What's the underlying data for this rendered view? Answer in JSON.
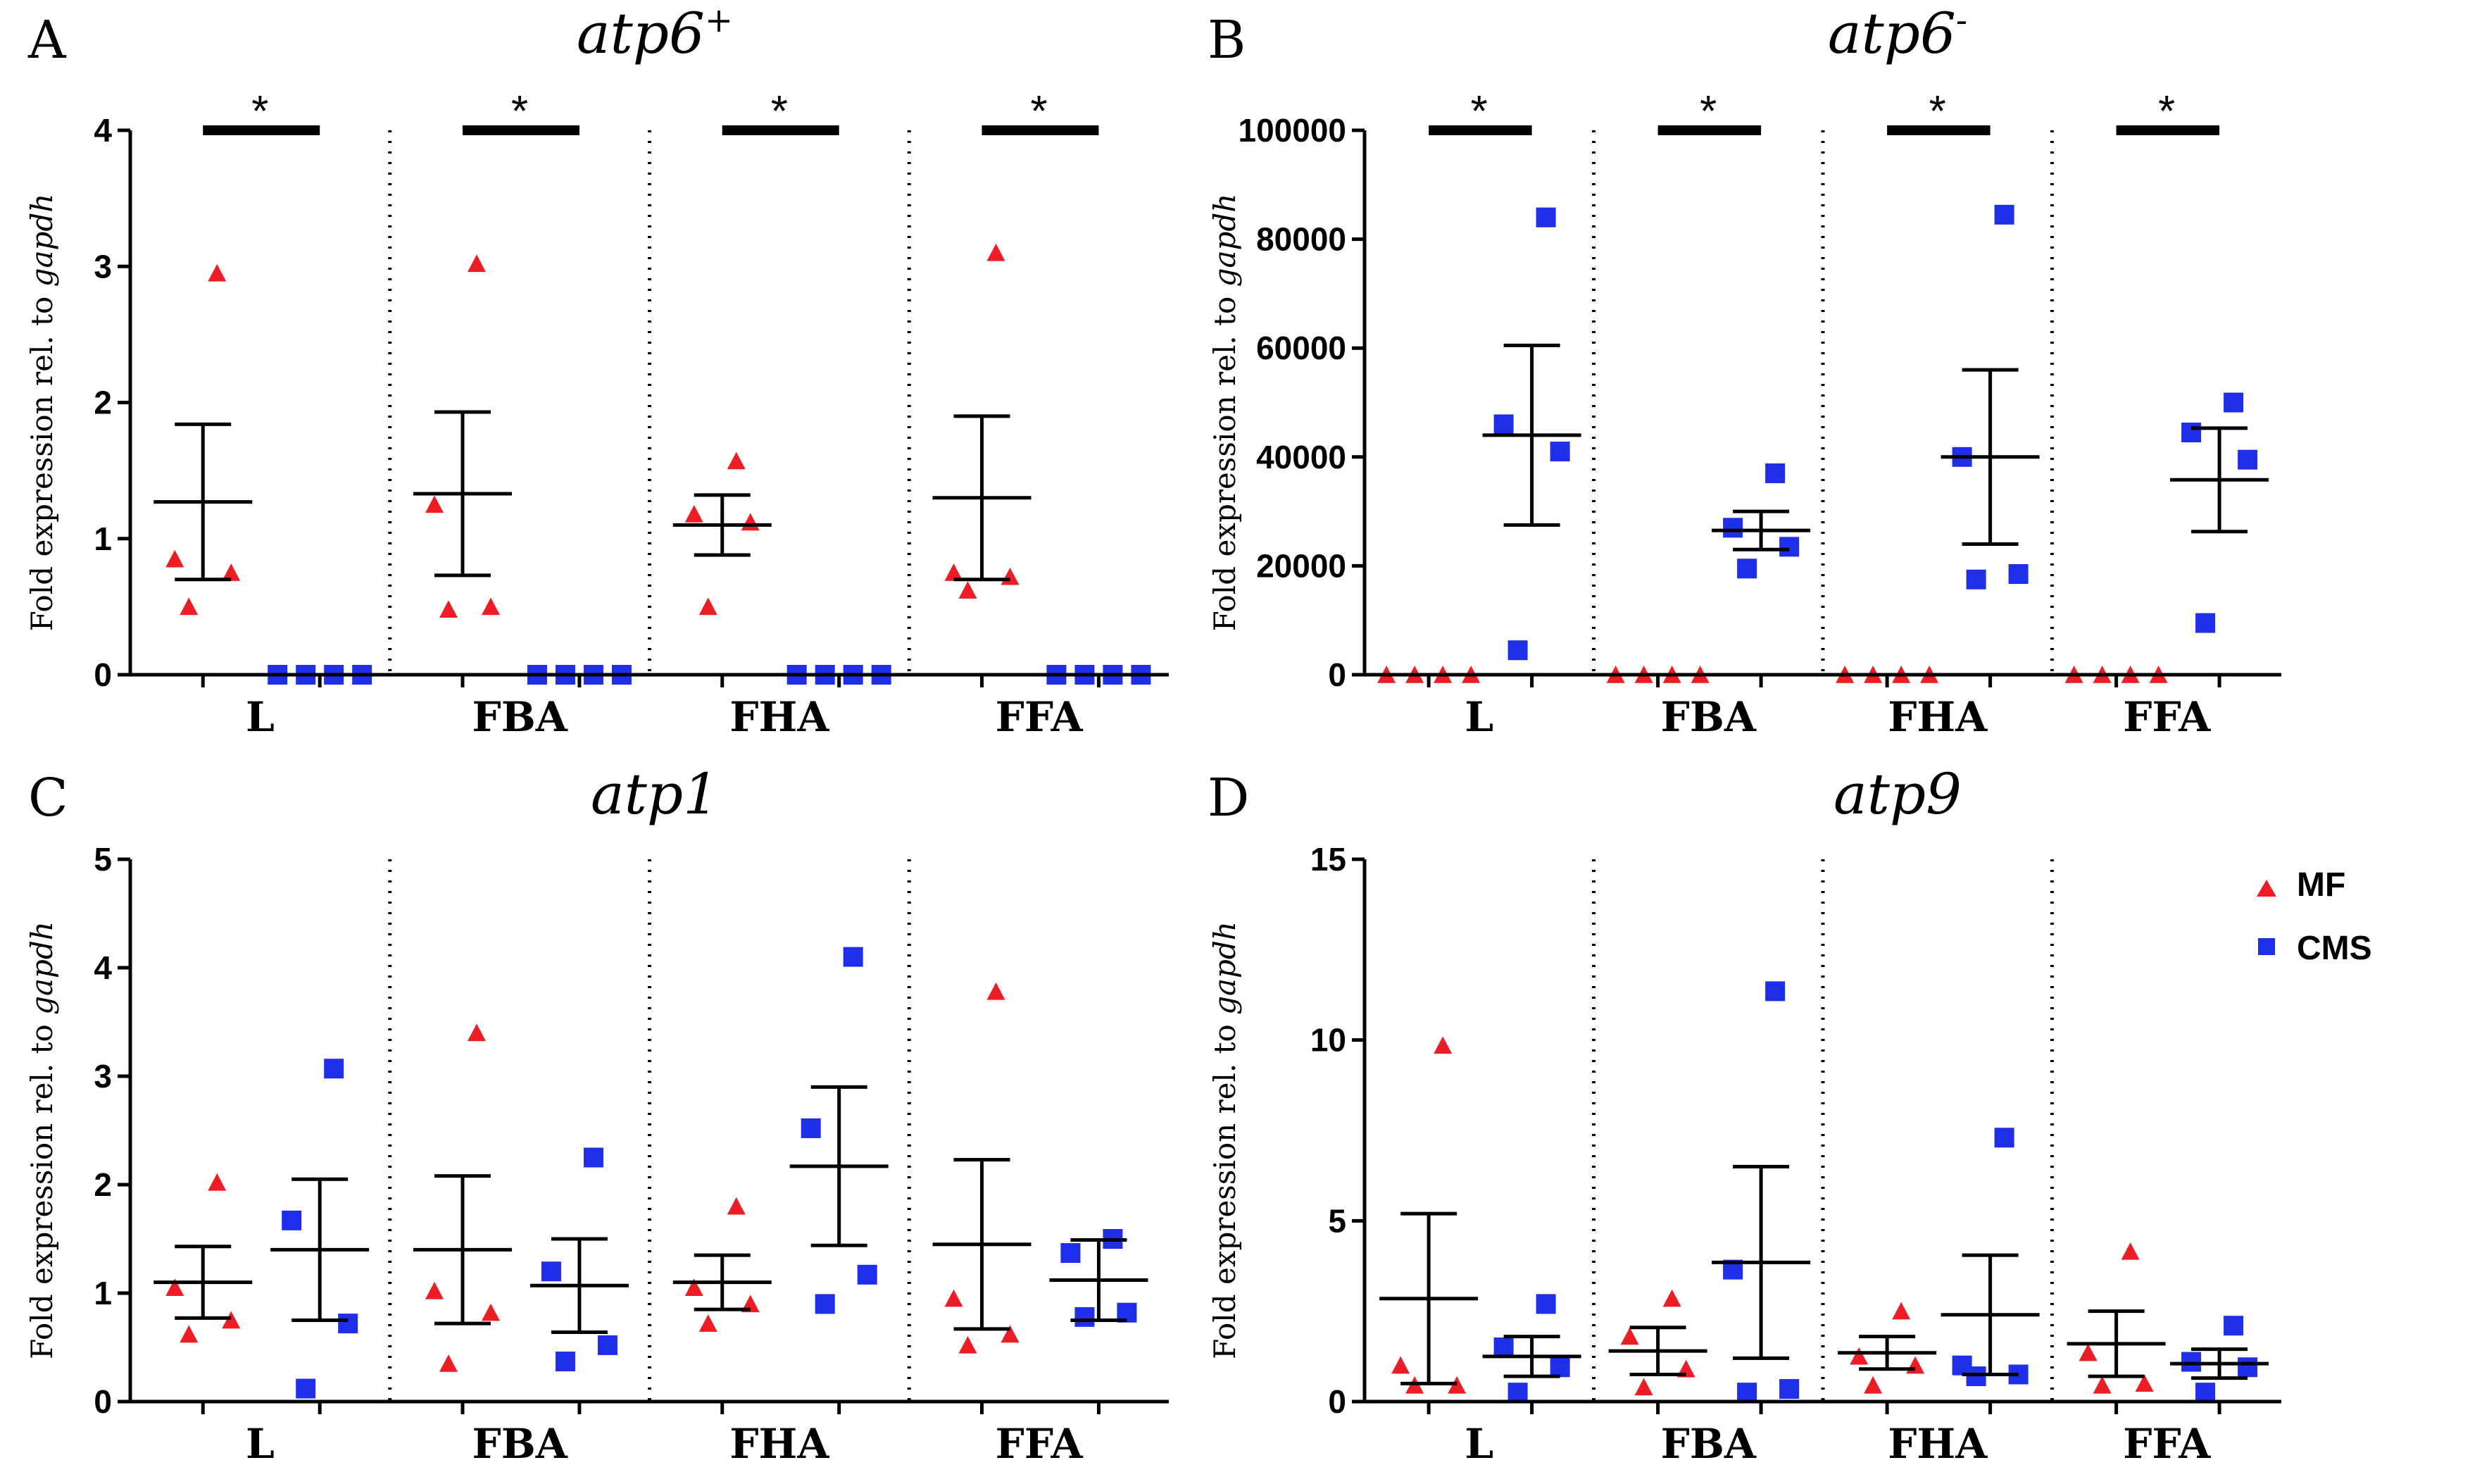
{
  "figure": {
    "groups": [
      "MF",
      "CMS"
    ],
    "colors": {
      "MF": "#ee1c25",
      "CMS": "#1f2ee8",
      "axis": "#000000"
    },
    "legend": {
      "placement": "top-right",
      "entries": [
        {
          "name": "MF",
          "marker": "triangle",
          "color": "#ee1c25"
        },
        {
          "name": "CMS",
          "marker": "square",
          "color": "#1f2ee8"
        }
      ]
    }
  },
  "chart_data": [
    {
      "id": "A",
      "panel_letter": "A",
      "type": "scatter",
      "title": "atp6",
      "title_sup": "+",
      "ylabel": "Fold expression rel. to",
      "ylabel_gene": "gapdh",
      "ylim": [
        0,
        4
      ],
      "yticks": [
        "0",
        "1",
        "2",
        "3",
        "4"
      ],
      "ytick_values": [
        0,
        1,
        2,
        3,
        4
      ],
      "categories": [
        "L",
        "FBA",
        "FHA",
        "FFA"
      ],
      "significance": [
        "*",
        "*",
        "*",
        "*"
      ],
      "series": [
        {
          "name": "MF",
          "marker": "triangle",
          "points": [
            [
              2.95,
              0.85,
              0.75,
              0.5
            ],
            [
              3.02,
              1.25,
              0.5,
              0.48
            ],
            [
              1.57,
              1.18,
              1.12,
              0.5
            ],
            [
              3.1,
              0.75,
              0.72,
              0.62
            ]
          ],
          "mean": [
            1.27,
            1.33,
            1.1,
            1.3
          ],
          "sem": [
            0.57,
            0.6,
            0.22,
            0.6
          ]
        },
        {
          "name": "CMS",
          "marker": "square",
          "points": [
            [
              0,
              0,
              0,
              0
            ],
            [
              0,
              0,
              0,
              0
            ],
            [
              0,
              0,
              0,
              0
            ],
            [
              0,
              0,
              0,
              0
            ]
          ],
          "mean": [
            0,
            0,
            0,
            0
          ],
          "sem": [
            0,
            0,
            0,
            0
          ]
        }
      ]
    },
    {
      "id": "B",
      "panel_letter": "B",
      "type": "scatter",
      "title": "atp6",
      "title_sup": "-",
      "ylabel": "Fold expression rel. to",
      "ylabel_gene": "gapdh",
      "ylim": [
        0,
        100000
      ],
      "yticks": [
        "0",
        "20000",
        "40000",
        "60000",
        "80000",
        "100000"
      ],
      "ytick_values": [
        0,
        20000,
        40000,
        60000,
        80000,
        100000
      ],
      "categories": [
        "L",
        "FBA",
        "FHA",
        "FFA"
      ],
      "significance": [
        "*",
        "*",
        "*",
        "*"
      ],
      "series": [
        {
          "name": "MF",
          "marker": "triangle",
          "points": [
            [
              0,
              0,
              0,
              0
            ],
            [
              0,
              0,
              0,
              0
            ],
            [
              0,
              0,
              0,
              0
            ],
            [
              0,
              0,
              0,
              0
            ]
          ],
          "mean": [
            0,
            0,
            0,
            0
          ],
          "sem": [
            0,
            0,
            0,
            0
          ]
        },
        {
          "name": "CMS",
          "marker": "square",
          "points": [
            [
              84000,
              46000,
              41000,
              4500
            ],
            [
              37000,
              27000,
              23500,
              19500
            ],
            [
              84500,
              40000,
              18500,
              17500
            ],
            [
              50000,
              44500,
              39500,
              9500
            ]
          ],
          "mean": [
            44000,
            26500,
            40000,
            35800
          ],
          "sem": [
            16500,
            3500,
            16000,
            9500
          ]
        }
      ]
    },
    {
      "id": "C",
      "panel_letter": "C",
      "type": "scatter",
      "title": "atp1",
      "title_sup": "",
      "ylabel": "Fold expression rel. to",
      "ylabel_gene": "gapdh",
      "ylim": [
        0,
        5
      ],
      "yticks": [
        "0",
        "1",
        "2",
        "3",
        "4",
        "5"
      ],
      "ytick_values": [
        0,
        1,
        2,
        3,
        4,
        5
      ],
      "categories": [
        "L",
        "FBA",
        "FHA",
        "FFA"
      ],
      "significance": [],
      "series": [
        {
          "name": "MF",
          "marker": "triangle",
          "points": [
            [
              2.02,
              1.05,
              0.75,
              0.62
            ],
            [
              3.4,
              1.02,
              0.82,
              0.35
            ],
            [
              1.8,
              1.05,
              0.9,
              0.72
            ],
            [
              3.78,
              0.95,
              0.62,
              0.52
            ]
          ],
          "mean": [
            1.1,
            1.4,
            1.1,
            1.45
          ],
          "sem": [
            0.33,
            0.68,
            0.25,
            0.78
          ]
        },
        {
          "name": "CMS",
          "marker": "square",
          "points": [
            [
              3.07,
              1.67,
              0.72,
              0.12
            ],
            [
              2.25,
              1.2,
              0.52,
              0.37
            ],
            [
              4.1,
              2.52,
              1.17,
              0.9
            ],
            [
              1.5,
              1.37,
              0.82,
              0.78
            ]
          ],
          "mean": [
            1.4,
            1.07,
            2.17,
            1.12
          ],
          "sem": [
            0.65,
            0.43,
            0.73,
            0.37
          ]
        }
      ]
    },
    {
      "id": "D",
      "panel_letter": "D",
      "type": "scatter",
      "title": "atp9",
      "title_sup": "",
      "ylabel": "Fold expression rel. to",
      "ylabel_gene": "gapdh",
      "ylim": [
        0,
        15
      ],
      "yticks": [
        "0",
        "5",
        "10",
        "15"
      ],
      "ytick_values": [
        0,
        5,
        10,
        15
      ],
      "categories": [
        "L",
        "FBA",
        "FHA",
        "FFA"
      ],
      "significance": [],
      "series": [
        {
          "name": "MF",
          "marker": "triangle",
          "points": [
            [
              9.85,
              1.0,
              0.45,
              0.45
            ],
            [
              2.85,
              1.8,
              0.9,
              0.4
            ],
            [
              2.5,
              1.25,
              1.0,
              0.45
            ],
            [
              4.15,
              1.35,
              0.5,
              0.45
            ]
          ],
          "mean": [
            2.85,
            1.4,
            1.35,
            1.6
          ],
          "sem": [
            2.35,
            0.65,
            0.45,
            0.9
          ]
        },
        {
          "name": "CMS",
          "marker": "square",
          "points": [
            [
              2.7,
              1.5,
              0.95,
              0.25
            ],
            [
              11.35,
              3.65,
              0.35,
              0.25
            ],
            [
              7.3,
              1.0,
              0.75,
              0.7
            ],
            [
              2.1,
              1.1,
              0.95,
              0.25
            ]
          ],
          "mean": [
            1.25,
            3.85,
            2.4,
            1.05
          ],
          "sem": [
            0.55,
            2.65,
            1.65,
            0.4
          ]
        }
      ]
    }
  ]
}
